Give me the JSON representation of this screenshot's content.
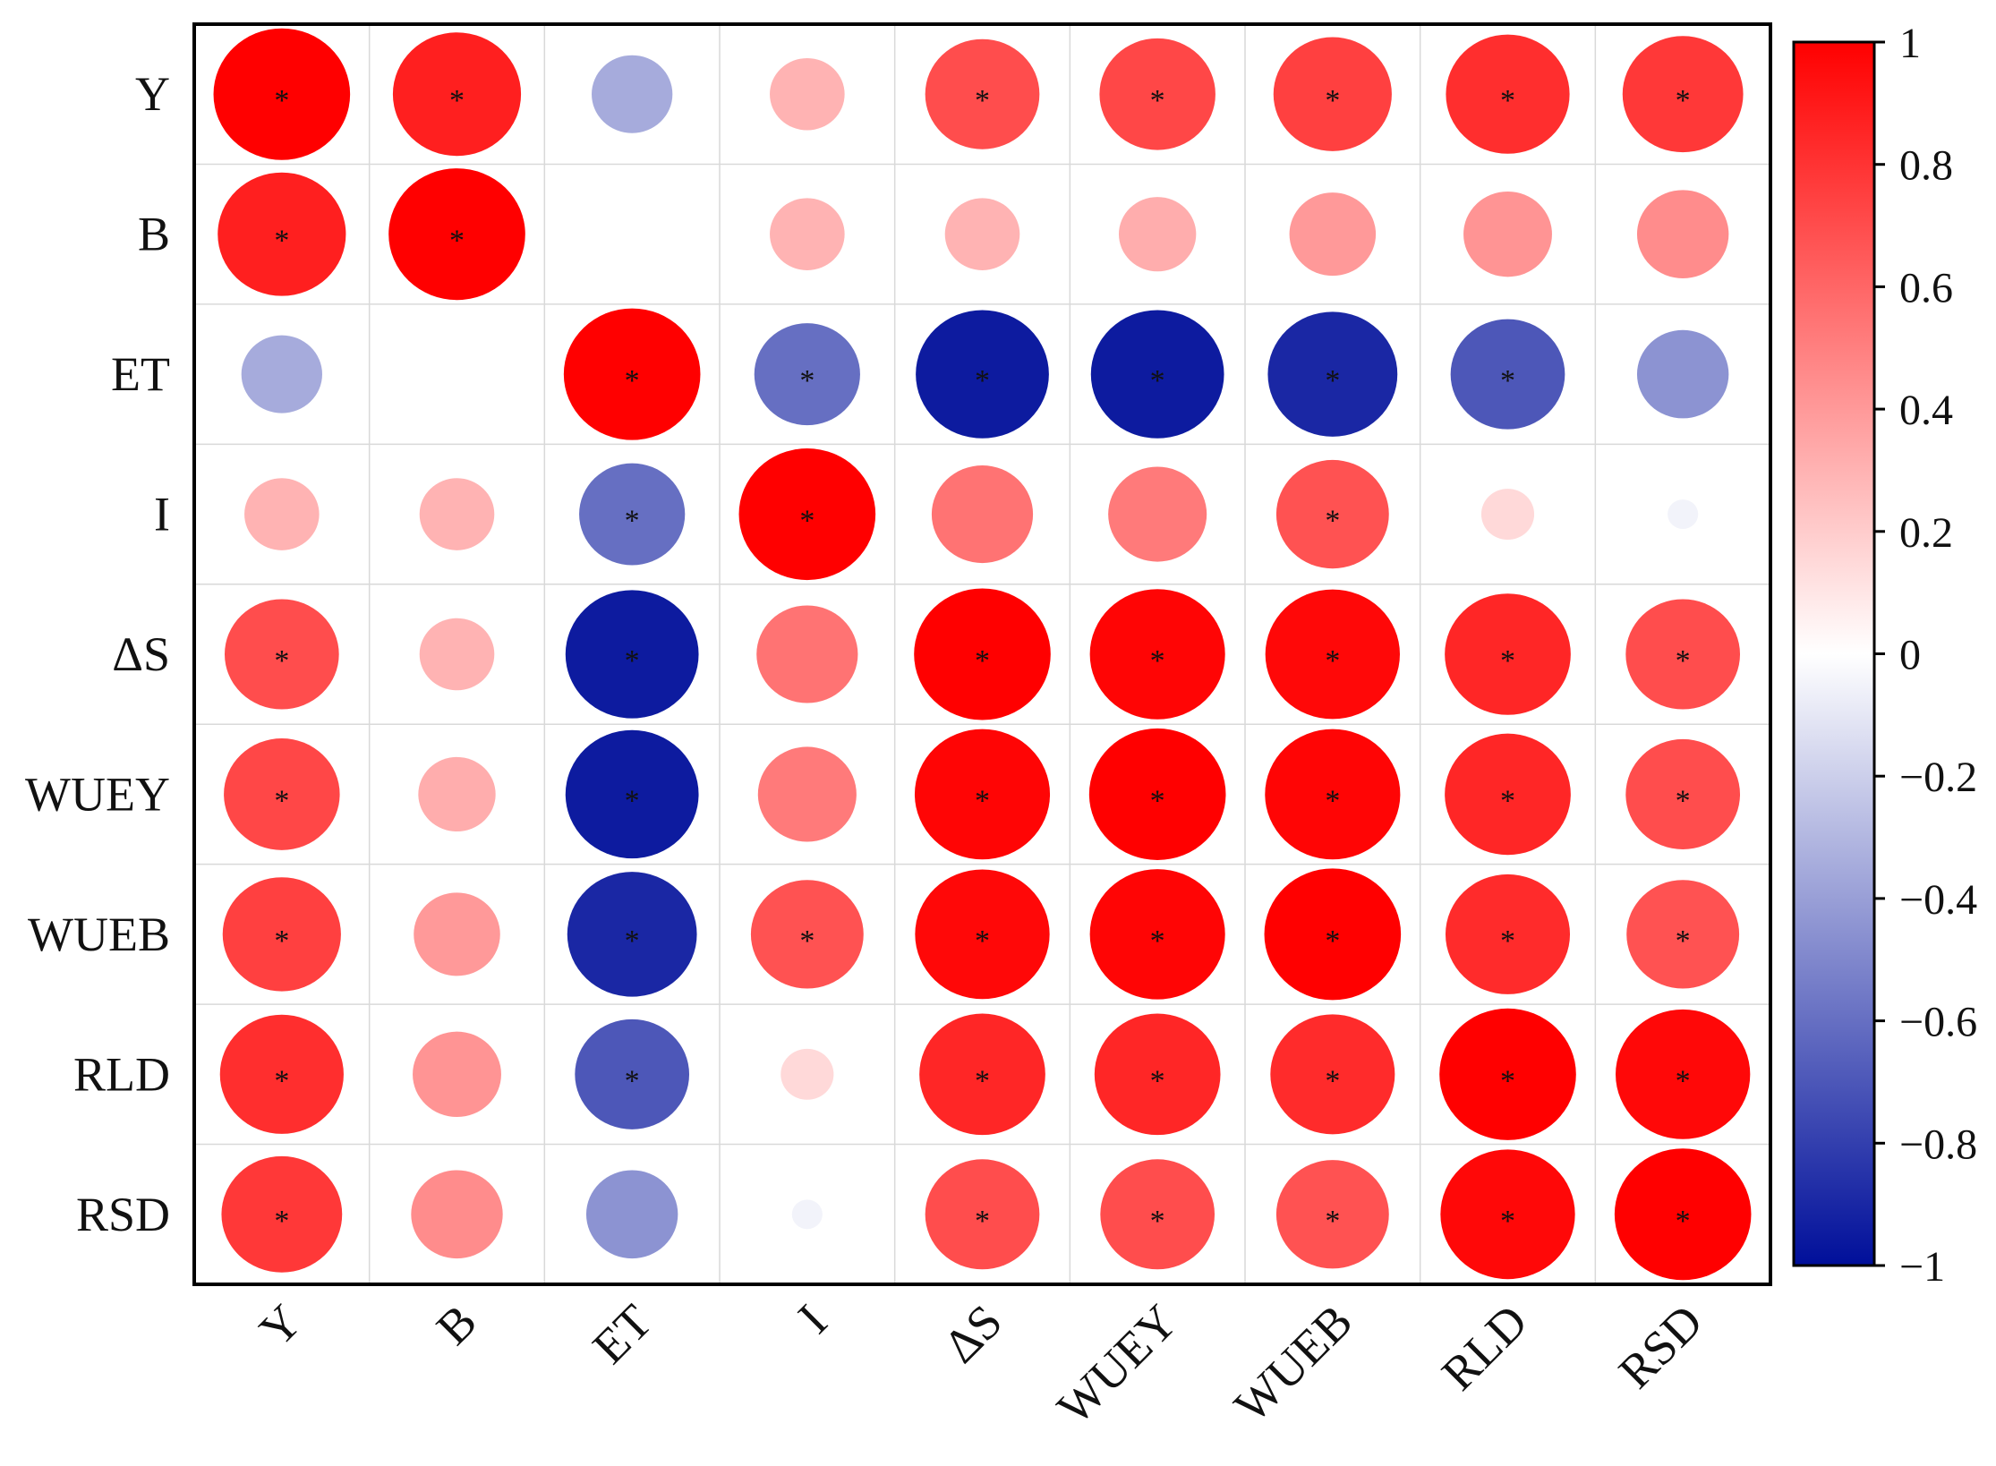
{
  "chart_data": {
    "type": "heatmap",
    "subtype": "correlation-circle-matrix",
    "variables": [
      "Y",
      "B",
      "ET",
      "I",
      "ΔS",
      "WUEY",
      "WUEB",
      "RLD",
      "RSD"
    ],
    "row_labels": [
      "Y",
      "B",
      "ET",
      "I",
      "ΔS",
      "WUEY",
      "WUEB",
      "RLD",
      "RSD"
    ],
    "col_labels": [
      "Y",
      "B",
      "ET",
      "I",
      "ΔS",
      "WUEY",
      "WUEB",
      "RLD",
      "RSD"
    ],
    "values": [
      [
        1.0,
        0.88,
        -0.35,
        0.3,
        0.7,
        0.72,
        0.75,
        0.82,
        0.78
      ],
      [
        0.88,
        1.0,
        0.0,
        0.3,
        0.3,
        0.32,
        0.4,
        0.42,
        0.45
      ],
      [
        -0.35,
        0.0,
        1.0,
        -0.6,
        -0.95,
        -0.95,
        -0.9,
        -0.7,
        -0.45
      ],
      [
        0.3,
        0.3,
        -0.6,
        1.0,
        0.55,
        0.52,
        0.68,
        0.15,
        -0.05
      ],
      [
        0.7,
        0.3,
        -0.95,
        0.55,
        1.0,
        0.98,
        0.97,
        0.85,
        0.7
      ],
      [
        0.72,
        0.32,
        -0.95,
        0.52,
        0.98,
        1.0,
        0.98,
        0.85,
        0.7
      ],
      [
        0.75,
        0.4,
        -0.9,
        0.68,
        0.97,
        0.98,
        1.0,
        0.83,
        0.68
      ],
      [
        0.82,
        0.42,
        -0.7,
        0.15,
        0.85,
        0.85,
        0.83,
        1.0,
        0.97
      ],
      [
        0.78,
        0.45,
        -0.45,
        -0.05,
        0.7,
        0.7,
        0.68,
        0.97,
        1.0
      ]
    ],
    "significant": [
      [
        true,
        true,
        false,
        false,
        true,
        true,
        true,
        true,
        true
      ],
      [
        true,
        true,
        false,
        false,
        false,
        false,
        false,
        false,
        false
      ],
      [
        false,
        false,
        true,
        true,
        true,
        true,
        true,
        true,
        false
      ],
      [
        false,
        false,
        true,
        true,
        false,
        false,
        true,
        false,
        false
      ],
      [
        true,
        false,
        true,
        false,
        true,
        true,
        true,
        true,
        true
      ],
      [
        true,
        false,
        true,
        false,
        true,
        true,
        true,
        true,
        true
      ],
      [
        true,
        false,
        true,
        true,
        true,
        true,
        true,
        true,
        true
      ],
      [
        true,
        false,
        true,
        false,
        true,
        true,
        true,
        true,
        true
      ],
      [
        true,
        false,
        false,
        false,
        true,
        true,
        true,
        true,
        true
      ]
    ],
    "significance_marker": "*",
    "colorbar": {
      "min": -1,
      "max": 1,
      "ticks": [
        "1",
        "0.8",
        "0.6",
        "0.4",
        "0.2",
        "0",
        "−0.2",
        "−0.4",
        "−0.6",
        "−0.8",
        "−1"
      ],
      "tick_values": [
        1,
        0.8,
        0.6,
        0.4,
        0.2,
        0,
        -0.2,
        -0.4,
        -0.6,
        -0.8,
        -1
      ],
      "placement": "right"
    },
    "colors": {
      "positive": "#ff0000",
      "neutral": "#ffffff",
      "negative": "#000f9a",
      "grid": "#d9d9d9",
      "frame": "#000000"
    }
  }
}
